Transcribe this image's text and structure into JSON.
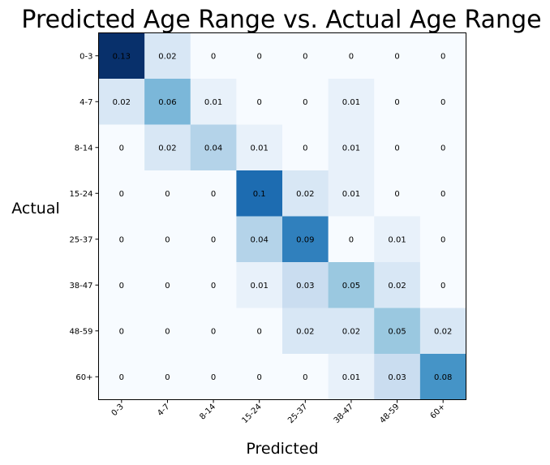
{
  "chart_data": {
    "type": "heatmap",
    "title": "Predicted Age Range vs. Actual Age Range",
    "xlabel": "Predicted",
    "ylabel": "Actual",
    "x_categories": [
      "0-3",
      "4-7",
      "8-14",
      "15-24",
      "25-37",
      "38-47",
      "48-59",
      "60+"
    ],
    "y_categories": [
      "0-3",
      "4-7",
      "8-14",
      "15-24",
      "25-37",
      "38-47",
      "48-59",
      "60+"
    ],
    "values": [
      [
        0.13,
        0.02,
        0.0,
        0.0,
        0.0,
        0.0,
        0.0,
        0.0
      ],
      [
        0.02,
        0.06,
        0.01,
        0.0,
        0.0,
        0.01,
        0.0,
        0.0
      ],
      [
        0.0,
        0.02,
        0.04,
        0.01,
        0.0,
        0.01,
        0.0,
        0.0
      ],
      [
        0.0,
        0.0,
        0.0,
        0.1,
        0.02,
        0.01,
        0.0,
        0.0
      ],
      [
        0.0,
        0.0,
        0.0,
        0.04,
        0.09,
        0.0,
        0.01,
        0.0
      ],
      [
        0.0,
        0.0,
        0.0,
        0.01,
        0.03,
        0.05,
        0.02,
        0.0
      ],
      [
        0.0,
        0.0,
        0.0,
        0.0,
        0.02,
        0.02,
        0.05,
        0.02
      ],
      [
        0.0,
        0.0,
        0.0,
        0.0,
        0.0,
        0.01,
        0.03,
        0.08
      ]
    ],
    "colormap": "Blues",
    "colormap_stops": [
      "#f7fbff",
      "#deebf7",
      "#c6dbef",
      "#9ecae1",
      "#6baed6",
      "#4292c6",
      "#2171b5",
      "#08519c",
      "#08306b"
    ],
    "vmin": 0.0,
    "vmax": 0.13,
    "grid": false,
    "legend": "none"
  }
}
